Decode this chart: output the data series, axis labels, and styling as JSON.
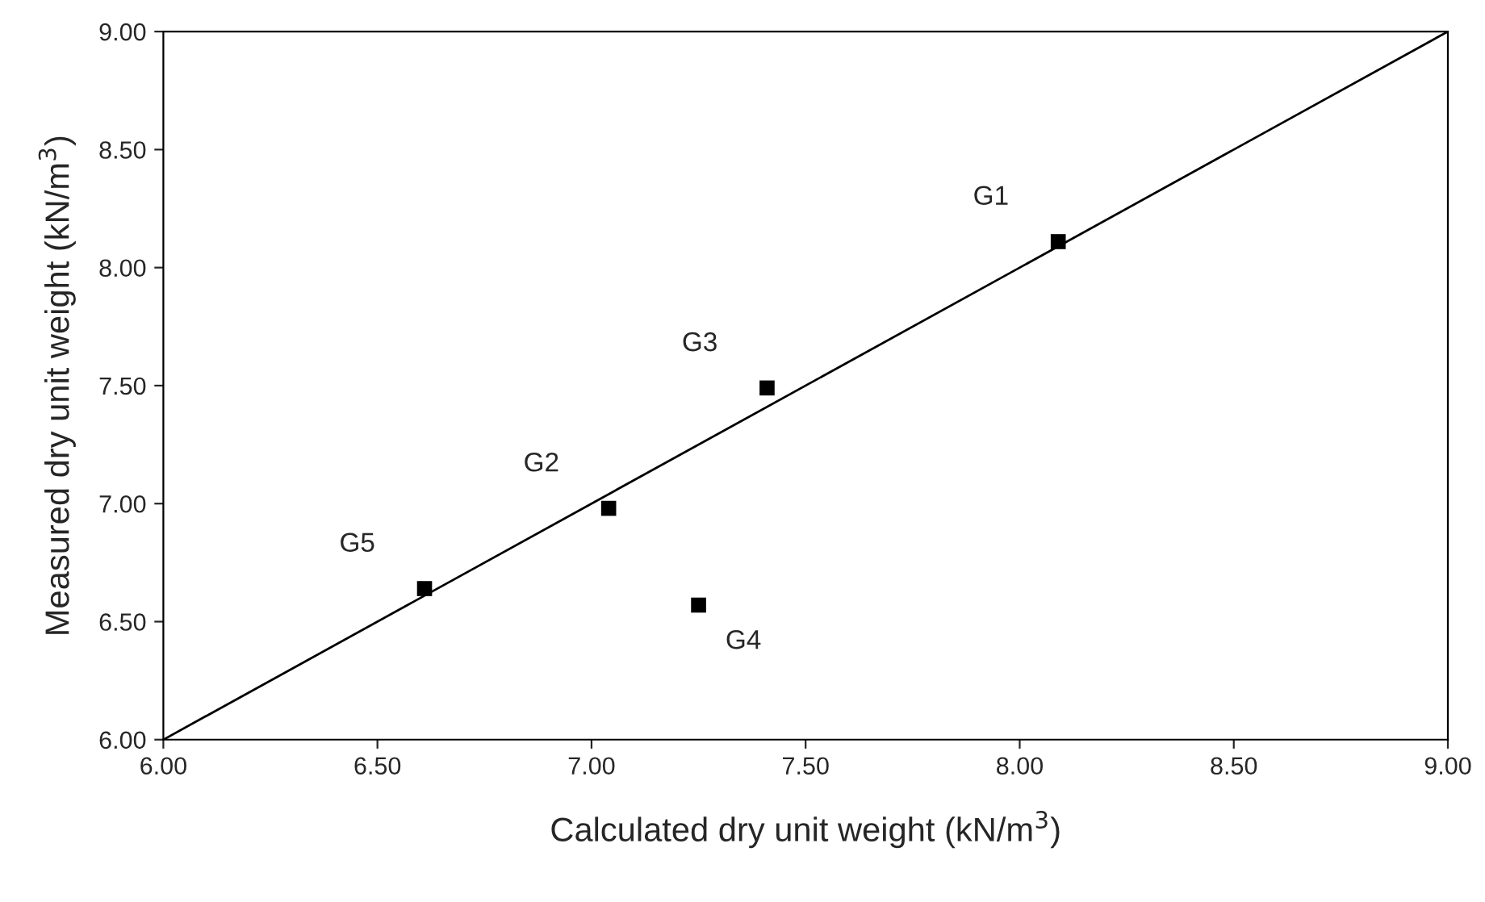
{
  "chart_data": {
    "type": "scatter",
    "xlabel": "Calculated dry unit weight (kN/m$^{3}$)",
    "ylabel": "Measured dry unit weight (kN/m$^{3}$)",
    "series": [
      {
        "color": "#000000",
        "marker": "square",
        "x": [
          8.09,
          7.04,
          7.41,
          7.25,
          6.61
        ],
        "values": [
          8.11,
          6.98,
          7.49,
          6.57,
          6.64
        ]
      },
      {
        "type": "line",
        "color": "#000000",
        "marker": "none",
        "line_style": "solid",
        "x": [
          6.0,
          9.0
        ],
        "values": [
          6.0,
          9.0
        ]
      }
    ],
    "annotations": [
      {
        "text": "G1",
        "x": 8.09,
        "y": 8.11
      },
      {
        "text": "G2",
        "x": 7.04,
        "y": 6.98
      },
      {
        "text": "G3",
        "x": 7.41,
        "y": 7.49
      },
      {
        "text": "G4",
        "x": 7.25,
        "y": 6.57
      },
      {
        "text": "G5",
        "x": 6.61,
        "y": 6.64
      }
    ],
    "xlim": [
      6.0,
      9.0
    ],
    "ylim": [
      6.0,
      9.0
    ],
    "xticks": [
      {
        "value": 6.0,
        "label": "6.00"
      },
      {
        "value": 6.5,
        "label": "6.50"
      },
      {
        "value": 7.0,
        "label": "7.00"
      },
      {
        "value": 7.5,
        "label": "7.50"
      },
      {
        "value": 8.0,
        "label": "8.00"
      },
      {
        "value": 8.5,
        "label": "8.50"
      },
      {
        "value": 9.0,
        "label": "9.00"
      }
    ],
    "yticks": [
      {
        "value": 6.0,
        "label": "6.00"
      },
      {
        "value": 6.5,
        "label": "6.50"
      },
      {
        "value": 7.0,
        "label": "7.00"
      },
      {
        "value": 7.5,
        "label": "7.50"
      },
      {
        "value": 8.0,
        "label": "8.00"
      },
      {
        "value": 8.5,
        "label": "8.50"
      },
      {
        "value": 9.0,
        "label": "9.00"
      }
    ],
    "grid": false,
    "legend": false
  }
}
